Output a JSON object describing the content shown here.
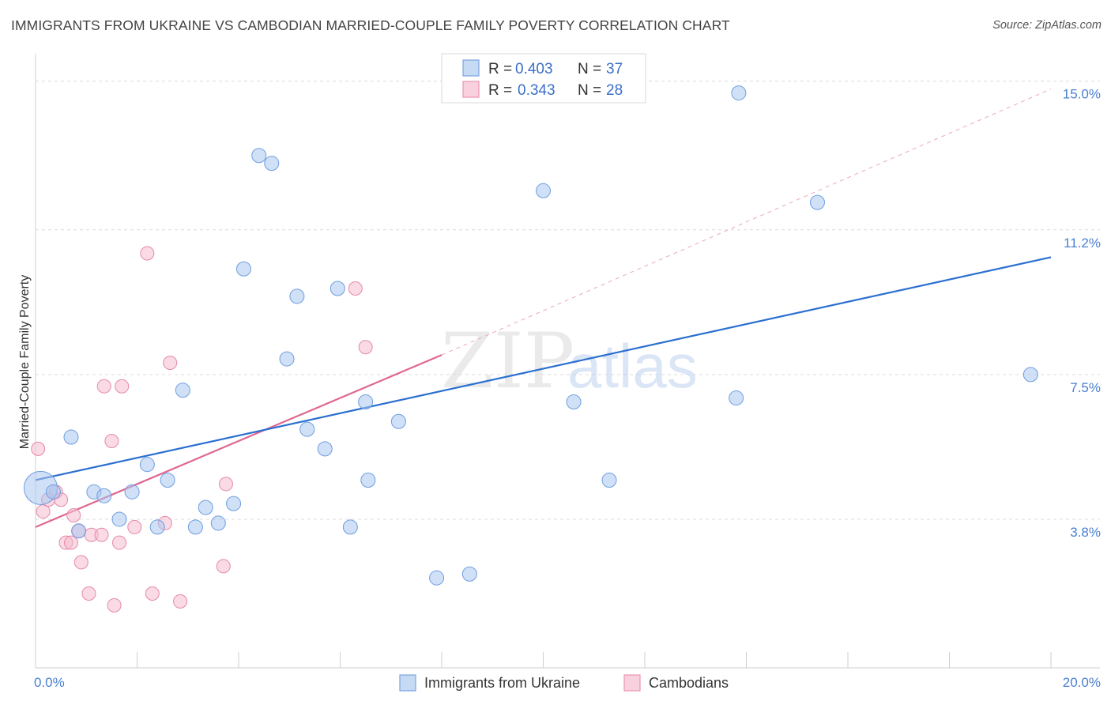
{
  "header": {
    "title": "IMMIGRANTS FROM UKRAINE VS CAMBODIAN MARRIED-COUPLE FAMILY POVERTY CORRELATION CHART",
    "source": "Source: ZipAtlas.com"
  },
  "colors": {
    "ukraine_fill": "#a9c6ef",
    "ukraine_stroke": "#6e9ee0",
    "ukraine_line": "#2b6fd1",
    "cambodian_fill": "#f6bcd0",
    "cambodian_stroke": "#e58aa8",
    "cambodian_line": "#e0678f",
    "grid": "#dcdcdc",
    "tick_text": "#4a7fd0"
  },
  "watermark": {
    "zip": "ZIP",
    "atlas": "atlas"
  },
  "legend": {
    "r_label": "R =",
    "n_label": "N =",
    "rows": [
      {
        "r": "0.403",
        "n": "37"
      },
      {
        "r": "0.343",
        "n": "28"
      }
    ]
  },
  "bottom_legend": {
    "items": [
      "Immigrants from Ukraine",
      "Cambodians"
    ]
  },
  "chart_data": {
    "type": "scatter",
    "title": "IMMIGRANTS FROM UKRAINE VS CAMBODIAN MARRIED-COUPLE FAMILY POVERTY CORRELATION CHART",
    "xlabel": "",
    "ylabel": "Married-Couple Family Poverty",
    "xlim": [
      0,
      20
    ],
    "ylim": [
      0,
      15.5
    ],
    "x_tick_labels": [
      "0.0%",
      "20.0%"
    ],
    "y_ticks": [
      3.8,
      7.5,
      11.2,
      15.0
    ],
    "y_tick_labels": [
      "3.8%",
      "7.5%",
      "11.2%",
      "15.0%"
    ],
    "grid": true,
    "legend_position": "top-center",
    "series": [
      {
        "name": "Immigrants from Ukraine",
        "R": 0.403,
        "N": 37,
        "trend": {
          "x": [
            0,
            20
          ],
          "y": [
            4.8,
            10.5
          ],
          "style": "solid"
        },
        "points": [
          [
            0.1,
            4.6
          ],
          [
            0.35,
            4.5
          ],
          [
            0.7,
            5.9
          ],
          [
            0.85,
            3.5
          ],
          [
            1.15,
            4.5
          ],
          [
            1.35,
            4.4
          ],
          [
            1.65,
            3.8
          ],
          [
            1.9,
            4.5
          ],
          [
            2.2,
            5.2
          ],
          [
            2.4,
            3.6
          ],
          [
            2.6,
            4.8
          ],
          [
            2.9,
            7.1
          ],
          [
            3.15,
            3.6
          ],
          [
            3.35,
            4.1
          ],
          [
            3.6,
            3.7
          ],
          [
            3.9,
            4.2
          ],
          [
            4.1,
            10.2
          ],
          [
            4.4,
            13.1
          ],
          [
            4.65,
            12.9
          ],
          [
            4.95,
            7.9
          ],
          [
            5.15,
            9.5
          ],
          [
            5.35,
            6.1
          ],
          [
            5.7,
            5.6
          ],
          [
            5.95,
            9.7
          ],
          [
            6.2,
            3.6
          ],
          [
            6.5,
            6.8
          ],
          [
            6.55,
            4.8
          ],
          [
            7.15,
            6.3
          ],
          [
            7.9,
            2.3
          ],
          [
            8.55,
            2.4
          ],
          [
            10.0,
            12.2
          ],
          [
            10.6,
            6.8
          ],
          [
            11.3,
            4.8
          ],
          [
            13.85,
            14.7
          ],
          [
            13.8,
            6.9
          ],
          [
            15.4,
            11.9
          ],
          [
            19.6,
            7.5
          ]
        ],
        "point_sizes_note": "first point is a large bubble",
        "bubble_radius": [
          21,
          9
        ]
      },
      {
        "name": "Cambodians",
        "R": 0.343,
        "N": 28,
        "trend": {
          "x": [
            0,
            8.0
          ],
          "y": [
            3.6,
            8.0
          ],
          "style": "solid",
          "extension": {
            "x": [
              8.0,
              20
            ],
            "y": [
              8.0,
              14.8
            ],
            "style": "dashed"
          }
        },
        "points": [
          [
            0.05,
            5.6
          ],
          [
            0.15,
            4.0
          ],
          [
            0.25,
            4.3
          ],
          [
            0.4,
            4.5
          ],
          [
            0.5,
            4.3
          ],
          [
            0.6,
            3.2
          ],
          [
            0.7,
            3.2
          ],
          [
            0.75,
            3.9
          ],
          [
            0.85,
            3.5
          ],
          [
            0.9,
            2.7
          ],
          [
            1.05,
            1.9
          ],
          [
            1.1,
            3.4
          ],
          [
            1.3,
            3.4
          ],
          [
            1.35,
            7.2
          ],
          [
            1.5,
            5.8
          ],
          [
            1.55,
            1.6
          ],
          [
            1.65,
            3.2
          ],
          [
            1.7,
            7.2
          ],
          [
            1.95,
            3.6
          ],
          [
            2.2,
            10.6
          ],
          [
            2.3,
            1.9
          ],
          [
            2.55,
            3.7
          ],
          [
            2.65,
            7.8
          ],
          [
            2.85,
            1.7
          ],
          [
            3.7,
            2.6
          ],
          [
            3.75,
            4.7
          ],
          [
            6.3,
            9.7
          ],
          [
            6.5,
            8.2
          ]
        ]
      }
    ]
  }
}
